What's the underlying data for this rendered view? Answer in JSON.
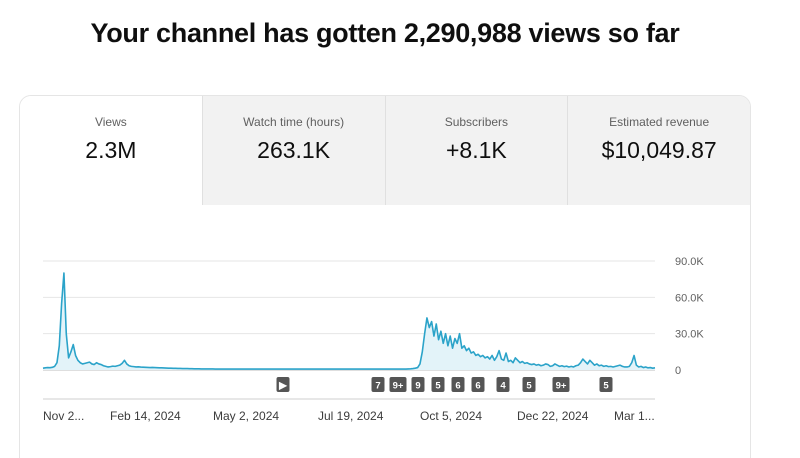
{
  "headline": "Your channel has gotten 2,290,988 views so far",
  "tabs": [
    {
      "label": "Views",
      "value": "2.3M"
    },
    {
      "label": "Watch time (hours)",
      "value": "263.1K"
    },
    {
      "label": "Subscribers",
      "value": "+8.1K"
    },
    {
      "label": "Estimated revenue",
      "value": "$10,049.87"
    }
  ],
  "colors": {
    "line": "#2ba3c9",
    "fill": "#e3f3f9",
    "marker": "#555555"
  },
  "chart_data": {
    "type": "area",
    "x_tick_labels": [
      "Nov 2...",
      "Feb 14, 2024",
      "May 2, 2024",
      "Jul 19, 2024",
      "Oct 5, 2024",
      "Dec 22, 2024",
      "Mar 1..."
    ],
    "y_tick_labels": [
      "0",
      "30.0K",
      "60.0K",
      "90.0K"
    ],
    "ylim": [
      0,
      90000
    ],
    "grid": true,
    "markers": [
      {
        "label": "▶",
        "icon": "play-icon"
      },
      {
        "label": "7"
      },
      {
        "label": "9+"
      },
      {
        "label": "9"
      },
      {
        "label": "5"
      },
      {
        "label": "6"
      },
      {
        "label": "6"
      },
      {
        "label": "4"
      },
      {
        "label": "5"
      },
      {
        "label": "9+"
      },
      {
        "label": "5"
      }
    ],
    "series": [
      {
        "values": [
          1500,
          1800,
          2000,
          1900,
          2200,
          3000,
          6000,
          20000,
          55000,
          80000,
          30000,
          10000,
          15000,
          21000,
          12000,
          8000,
          6000,
          5000,
          5500,
          6000,
          6500,
          5000,
          4500,
          6000,
          5000,
          4500,
          3500,
          3000,
          2500,
          2800,
          3200,
          3000,
          3500,
          4000,
          5500,
          8000,
          5000,
          3500,
          3000,
          2800,
          2500,
          2600,
          2400,
          2300,
          2200,
          2100,
          2000,
          2100,
          2000,
          1900,
          1800,
          1800,
          1700,
          1600,
          1500,
          1500,
          1400,
          1400,
          1300,
          1300,
          1200,
          1200,
          1200,
          1100,
          1100,
          1000,
          1000,
          1000,
          900,
          900,
          900,
          900,
          850,
          850,
          800,
          800,
          800,
          800,
          800,
          800,
          800,
          800,
          800,
          800,
          800,
          800,
          800,
          800,
          800,
          800,
          800,
          800,
          800,
          800,
          800,
          800,
          800,
          800,
          800,
          800,
          800,
          800,
          800,
          800,
          800,
          800,
          800,
          800,
          800,
          800,
          800,
          800,
          800,
          800,
          800,
          800,
          800,
          800,
          800,
          800,
          800,
          800,
          800,
          800,
          800,
          800,
          800,
          800,
          800,
          800,
          800,
          800,
          800,
          800,
          800,
          800,
          800,
          800,
          800,
          800,
          800,
          800,
          800,
          800,
          800,
          800,
          800,
          800,
          800,
          800,
          800,
          800,
          800,
          800,
          800,
          800,
          800,
          900,
          1000,
          1200,
          1500,
          2000,
          5000,
          15000,
          30000,
          43000,
          35000,
          40000,
          28000,
          38000,
          25000,
          32000,
          22000,
          30000,
          20000,
          28000,
          18000,
          26000,
          22000,
          30000,
          18000,
          20000,
          16000,
          18000,
          14000,
          15000,
          12000,
          13000,
          11000,
          12000,
          10000,
          11000,
          9000,
          12000,
          8000,
          11000,
          16000,
          9000,
          8000,
          14000,
          7000,
          8000,
          6000,
          10000,
          8000,
          6000,
          7000,
          5500,
          6000,
          5000,
          4500,
          5000,
          4000,
          4500,
          3500,
          4000,
          5000,
          4500,
          3000,
          3500,
          5000,
          4000,
          3000,
          3500,
          2800,
          3200,
          2500,
          3000,
          2500,
          3500,
          4000,
          6000,
          9000,
          7000,
          5000,
          8000,
          6000,
          4000,
          5000,
          3500,
          4000,
          3000,
          3500,
          2800,
          3000,
          2500,
          3000,
          3500,
          4000,
          3000,
          2500,
          2500,
          3000,
          6000,
          12000,
          4000,
          2500,
          3000,
          2000,
          2500,
          1800,
          2000,
          1500,
          1800
        ]
      }
    ]
  }
}
